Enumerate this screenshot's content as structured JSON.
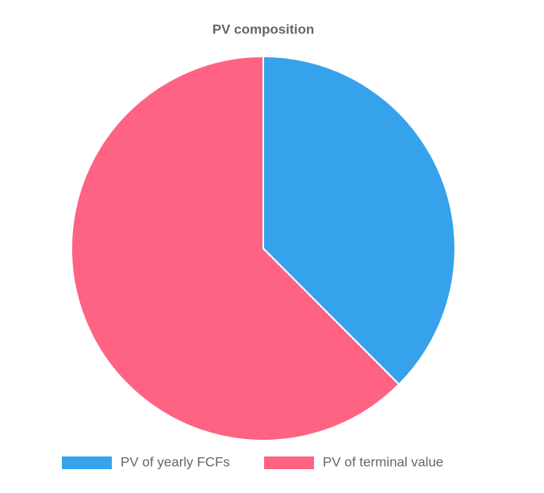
{
  "chart_data": {
    "type": "pie",
    "title": "PV composition",
    "categories": [
      "PV of yearly FCFs",
      "PV of terminal value"
    ],
    "values": [
      37.5,
      62.5
    ],
    "colors": [
      "#36a2eb",
      "#ff6384"
    ],
    "legend": "bottom"
  }
}
